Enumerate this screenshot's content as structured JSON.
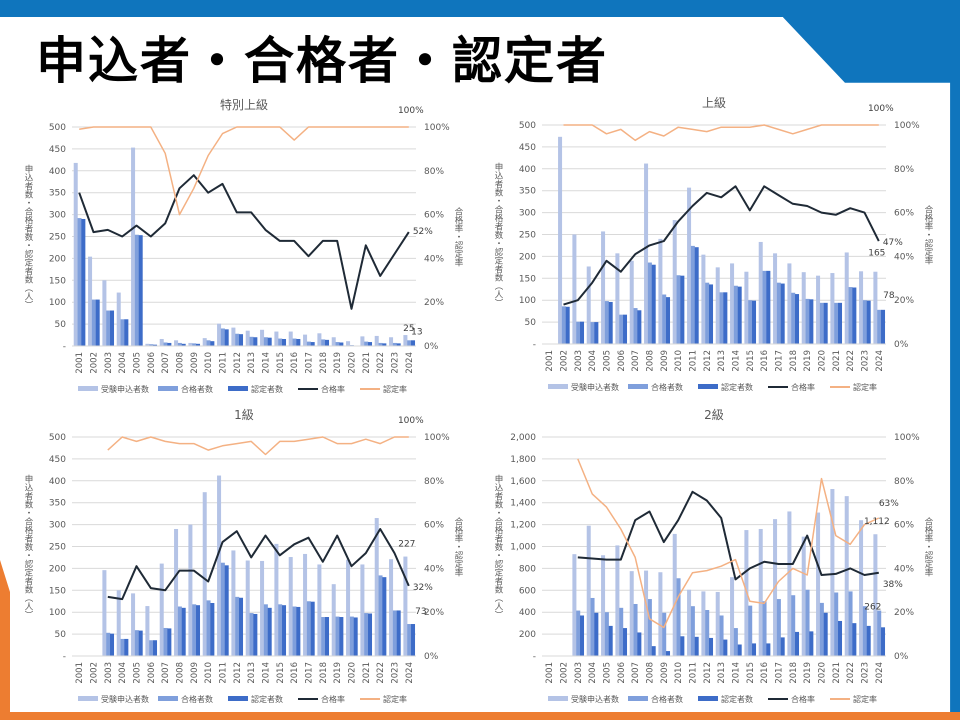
{
  "slide": {
    "title": "申込者・合格者・認定者",
    "colors": {
      "brand_blue": "#0f75bd",
      "accent_orange": "#ed7d31"
    }
  },
  "chart_data": [
    {
      "type": "bar+line",
      "title": "特別上級",
      "ylabel": "申込者数・合格者数・認定者数（人）",
      "y2label": "合格率・認定率",
      "ylim": [
        0,
        500
      ],
      "y2lim": [
        0,
        100
      ],
      "yticks": [
        "-",
        "50",
        "100",
        "150",
        "200",
        "250",
        "300",
        "350",
        "400",
        "450",
        "500"
      ],
      "y2ticks": [
        "0%",
        "20%",
        "40%",
        "60%",
        "80%",
        "100%"
      ],
      "categories": [
        "2001",
        "2002",
        "2003",
        "2004",
        "2005",
        "2006",
        "2007",
        "2008",
        "2009",
        "2010",
        "2011",
        "2012",
        "2013",
        "2014",
        "2015",
        "2016",
        "2017",
        "2018",
        "2019",
        "2020",
        "2021",
        "2022",
        "2023",
        "2024"
      ],
      "series": [
        {
          "name": "受験申込者数",
          "kind": "bar",
          "color": "#b4c3e6",
          "values": [
            418,
            204,
            150,
            122,
            453,
            5,
            16,
            13,
            7,
            18,
            51,
            42,
            35,
            37,
            33,
            33,
            26,
            29,
            20,
            11,
            22,
            23,
            20,
            25
          ]
        },
        {
          "name": "合格者数",
          "kind": "bar",
          "color": "#7f9fdc",
          "values": [
            292,
            106,
            81,
            61,
            254,
            4,
            8,
            7,
            6,
            13,
            40,
            28,
            21,
            20,
            17,
            17,
            10,
            15,
            9,
            2,
            10,
            7,
            7,
            13
          ]
        },
        {
          "name": "認定者数",
          "kind": "bar",
          "color": "#3d6cc8",
          "values": [
            290,
            106,
            81,
            61,
            253,
            3,
            7,
            5,
            5,
            11,
            38,
            27,
            20,
            19,
            16,
            16,
            9,
            14,
            8,
            1,
            9,
            6,
            6,
            13
          ]
        },
        {
          "name": "合格率",
          "kind": "line",
          "axis": "right",
          "color": "#1f2a36",
          "values": [
            70,
            52,
            53,
            50,
            55,
            50,
            56,
            72,
            78,
            70,
            74,
            61,
            61,
            53,
            48,
            48,
            41,
            48,
            48,
            17,
            46,
            32,
            42,
            52
          ]
        },
        {
          "name": "認定率",
          "kind": "line",
          "axis": "right",
          "color": "#f4b183",
          "values": [
            99,
            100,
            100,
            100,
            100,
            100,
            88,
            60,
            72,
            87,
            97,
            100,
            100,
            100,
            100,
            94,
            100,
            100,
            100,
            100,
            100,
            100,
            100,
            100
          ]
        }
      ],
      "annotations": [
        {
          "text": "100%",
          "series": 4,
          "dx": 2,
          "dy": -14
        },
        {
          "text": "52%",
          "series": 3,
          "dx": 14,
          "dy": 2
        },
        {
          "text": "25",
          "series": 0,
          "dx": 0,
          "dy": -4
        },
        {
          "text": "13",
          "series": 2,
          "dx": 8,
          "dy": -6
        }
      ],
      "legend": "bottom"
    },
    {
      "type": "bar+line",
      "title": "上級",
      "ylabel": "申込者数・合格者数・認定者数（人）",
      "y2label": "合格率・認定率",
      "ylim": [
        0,
        500
      ],
      "y2lim": [
        0,
        100
      ],
      "yticks": [
        "-",
        "50",
        "100",
        "150",
        "200",
        "250",
        "300",
        "350",
        "400",
        "450",
        "500"
      ],
      "y2ticks": [
        "0%",
        "20%",
        "40%",
        "60%",
        "80%",
        "100%"
      ],
      "categories": [
        "2001",
        "2002",
        "2003",
        "2004",
        "2005",
        "2006",
        "2007",
        "2008",
        "2009",
        "2010",
        "2011",
        "2012",
        "2013",
        "2014",
        "2015",
        "2016",
        "2017",
        "2018",
        "2019",
        "2020",
        "2021",
        "2022",
        "2023",
        "2024"
      ],
      "series": [
        {
          "name": "受験申込者数",
          "kind": "bar",
          "color": "#b4c3e6",
          "values": [
            null,
            473,
            250,
            177,
            257,
            207,
            190,
            412,
            240,
            283,
            357,
            204,
            175,
            184,
            165,
            233,
            207,
            184,
            164,
            156,
            162,
            209,
            166,
            165
          ]
        },
        {
          "name": "合格者数",
          "kind": "bar",
          "color": "#7f9fdc",
          "values": [
            null,
            86,
            51,
            50,
            98,
            67,
            82,
            186,
            113,
            157,
            224,
            140,
            118,
            133,
            100,
            167,
            140,
            117,
            103,
            94,
            94,
            130,
            100,
            78
          ]
        },
        {
          "name": "認定者数",
          "kind": "bar",
          "color": "#3d6cc8",
          "values": [
            null,
            85,
            51,
            50,
            96,
            67,
            77,
            181,
            107,
            156,
            221,
            136,
            118,
            131,
            99,
            167,
            138,
            114,
            102,
            94,
            94,
            129,
            99,
            78
          ]
        },
        {
          "name": "合格率",
          "kind": "line",
          "axis": "right",
          "color": "#1f2a36",
          "values": [
            null,
            18,
            20,
            28,
            38,
            33,
            41,
            45,
            47,
            56,
            63,
            69,
            67,
            72,
            61,
            72,
            68,
            64,
            63,
            60,
            59,
            62,
            60,
            47
          ]
        },
        {
          "name": "認定率",
          "kind": "line",
          "axis": "right",
          "color": "#f4b183",
          "values": [
            null,
            100,
            100,
            100,
            96,
            98,
            93,
            97,
            95,
            99,
            98,
            97,
            99,
            99,
            99,
            100,
            98,
            96,
            98,
            100,
            100,
            100,
            100,
            100
          ]
        }
      ],
      "annotations": [
        {
          "text": "100%",
          "series": 4,
          "dx": 2,
          "dy": -14
        },
        {
          "text": "47%",
          "series": 3,
          "dx": 14,
          "dy": 4
        },
        {
          "text": "165",
          "series": 0,
          "dx": -2,
          "dy": -16
        },
        {
          "text": "78",
          "series": 2,
          "dx": 10,
          "dy": -12
        }
      ],
      "legend": "bottom"
    },
    {
      "type": "bar+line",
      "title": "1級",
      "ylabel": "申込者数・合格者数・認定者数（人）",
      "y2label": "合格率・認定率",
      "ylim": [
        0,
        500
      ],
      "y2lim": [
        0,
        100
      ],
      "yticks": [
        "-",
        "50",
        "100",
        "150",
        "200",
        "250",
        "300",
        "350",
        "400",
        "450",
        "500"
      ],
      "y2ticks": [
        "0%",
        "20%",
        "40%",
        "60%",
        "80%",
        "100%"
      ],
      "categories": [
        "2001",
        "2002",
        "2003",
        "2004",
        "2005",
        "2006",
        "2007",
        "2008",
        "2009",
        "2010",
        "2011",
        "2012",
        "2013",
        "2014",
        "2015",
        "2016",
        "2017",
        "2018",
        "2019",
        "2020",
        "2021",
        "2022",
        "2023",
        "2024"
      ],
      "series": [
        {
          "name": "受験申込者数",
          "kind": "bar",
          "color": "#b4c3e6",
          "values": [
            null,
            null,
            196,
            150,
            143,
            114,
            211,
            290,
            300,
            374,
            412,
            241,
            218,
            217,
            256,
            226,
            233,
            209,
            164,
            220,
            209,
            315,
            221,
            227
          ]
        },
        {
          "name": "合格者数",
          "kind": "bar",
          "color": "#7f9fdc",
          "values": [
            null,
            null,
            53,
            39,
            59,
            36,
            64,
            113,
            118,
            127,
            213,
            135,
            98,
            118,
            118,
            113,
            125,
            89,
            90,
            90,
            98,
            184,
            104,
            73
          ]
        },
        {
          "name": "認定者数",
          "kind": "bar",
          "color": "#3d6cc8",
          "values": [
            null,
            null,
            51,
            39,
            58,
            36,
            63,
            110,
            116,
            121,
            207,
            133,
            96,
            110,
            116,
            112,
            124,
            89,
            89,
            88,
            97,
            180,
            104,
            73
          ]
        },
        {
          "name": "合格率",
          "kind": "line",
          "axis": "right",
          "color": "#1f2a36",
          "values": [
            null,
            null,
            27,
            26,
            41,
            31,
            30,
            39,
            39,
            34,
            52,
            57,
            45,
            55,
            46,
            51,
            54,
            43,
            55,
            41,
            47,
            58,
            47,
            32
          ]
        },
        {
          "name": "認定率",
          "kind": "line",
          "axis": "right",
          "color": "#f4b183",
          "values": [
            null,
            null,
            94,
            100,
            98,
            100,
            98,
            97,
            97,
            94,
            96,
            97,
            98,
            92,
            98,
            98,
            99,
            100,
            97,
            97,
            99,
            97,
            100,
            100
          ]
        }
      ],
      "annotations": [
        {
          "text": "100%",
          "series": 4,
          "dx": 2,
          "dy": -14
        },
        {
          "text": "32%",
          "series": 3,
          "dx": 14,
          "dy": 4
        },
        {
          "text": "227",
          "series": 0,
          "dx": -2,
          "dy": -10
        },
        {
          "text": "73",
          "series": 2,
          "dx": 12,
          "dy": -10
        }
      ],
      "legend": "bottom"
    },
    {
      "type": "bar+line",
      "title": "2級",
      "ylabel": "申込者数・合格者数・認定者数（人）",
      "y2label": "合格率・認定率",
      "ylim": [
        0,
        2000
      ],
      "y2lim": [
        0,
        100
      ],
      "yticks": [
        "-",
        "200",
        "400",
        "600",
        "800",
        "1,000",
        "1,200",
        "1,400",
        "1,600",
        "1,800",
        "2,000"
      ],
      "y2ticks": [
        "0%",
        "20%",
        "40%",
        "60%",
        "80%",
        "100%"
      ],
      "categories": [
        "2001",
        "2002",
        "2003",
        "2004",
        "2005",
        "2006",
        "2007",
        "2008",
        "2009",
        "2010",
        "2011",
        "2012",
        "2013",
        "2014",
        "2015",
        "2016",
        "2017",
        "2018",
        "2019",
        "2020",
        "2021",
        "2022",
        "2023",
        "2024"
      ],
      "series": [
        {
          "name": "受験申込者数",
          "kind": "bar",
          "color": "#b4c3e6",
          "values": [
            null,
            null,
            930,
            1190,
            920,
            1010,
            775,
            780,
            765,
            1115,
            605,
            590,
            585,
            720,
            1150,
            1160,
            1250,
            1320,
            1090,
            1310,
            1525,
            1460,
            1240,
            1112
          ]
        },
        {
          "name": "合格者数",
          "kind": "bar",
          "color": "#7f9fdc",
          "values": [
            null,
            null,
            415,
            530,
            400,
            440,
            475,
            520,
            395,
            710,
            455,
            420,
            370,
            255,
            460,
            500,
            520,
            555,
            605,
            485,
            580,
            590,
            455,
            415
          ]
        },
        {
          "name": "認定者数",
          "kind": "bar",
          "color": "#3d6cc8",
          "values": [
            null,
            null,
            370,
            395,
            275,
            255,
            215,
            90,
            45,
            180,
            175,
            165,
            150,
            105,
            115,
            115,
            170,
            220,
            225,
            395,
            320,
            300,
            275,
            262
          ]
        },
        {
          "name": "合格率",
          "kind": "line",
          "axis": "right",
          "color": "#1f2a36",
          "values": [
            null,
            null,
            45,
            44.5,
            44,
            44,
            62,
            66,
            52,
            62,
            75,
            71,
            63,
            35,
            40,
            43,
            42,
            42,
            55,
            37,
            37.5,
            40,
            37,
            38
          ]
        },
        {
          "name": "認定率",
          "kind": "line",
          "axis": "right",
          "color": "#f4b183",
          "values": [
            null,
            null,
            90,
            74,
            68,
            58,
            45,
            17,
            13,
            27,
            38,
            39,
            41,
            44,
            25,
            24,
            34,
            40,
            37,
            81,
            55,
            51,
            60,
            63
          ]
        }
      ],
      "annotations": [
        {
          "text": "63%",
          "series": 4,
          "dx": 10,
          "dy": -12
        },
        {
          "text": "1,112",
          "series": 0,
          "dx": -2,
          "dy": -10
        },
        {
          "text": "38%",
          "series": 3,
          "dx": 14,
          "dy": 14
        },
        {
          "text": "262",
          "series": 2,
          "dx": -6,
          "dy": -18
        }
      ],
      "legend": "bottom"
    }
  ]
}
